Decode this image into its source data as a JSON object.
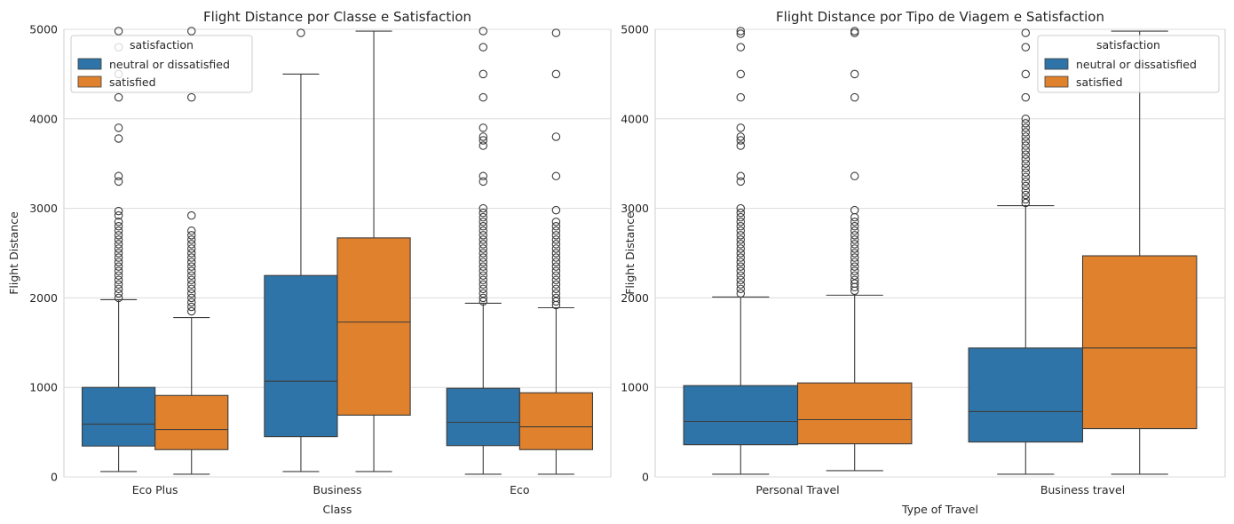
{
  "chart_data": [
    {
      "type": "box",
      "title": "Flight Distance por Classe e Satisfaction",
      "xlabel": "Class",
      "ylabel": "Flight Distance",
      "ylim": [
        0,
        5000
      ],
      "yticks": [
        "0",
        "1000",
        "2000",
        "3000",
        "4000",
        "5000"
      ],
      "grid": "horizontal",
      "legend": {
        "title": "satisfaction",
        "placement": "top-left",
        "entries": [
          "neutral or dissatisfied",
          "satisfied"
        ]
      },
      "categories": [
        "Eco Plus",
        "Business",
        "Eco"
      ],
      "series": [
        {
          "name": "neutral or dissatisfied",
          "color": "#2e74a8",
          "boxes": [
            {
              "q1": 345,
              "median": 590,
              "q3": 1000,
              "whislo": 60,
              "whishi": 1980,
              "outliers": [
                2000,
                2050,
                2100,
                2150,
                2200,
                2250,
                2300,
                2350,
                2400,
                2450,
                2500,
                2550,
                2600,
                2650,
                2700,
                2750,
                2800,
                2850,
                2920,
                2970,
                3300,
                3360,
                3780,
                3900,
                4240,
                4500,
                4800,
                4980
              ]
            },
            {
              "q1": 450,
              "median": 1070,
              "q3": 2250,
              "whislo": 60,
              "whishi": 4500,
              "outliers": [
                4960
              ]
            },
            {
              "q1": 350,
              "median": 610,
              "q3": 990,
              "whislo": 30,
              "whishi": 1940,
              "outliers": [
                1960,
                2000,
                2050,
                2100,
                2150,
                2200,
                2250,
                2300,
                2350,
                2400,
                2450,
                2500,
                2550,
                2600,
                2650,
                2700,
                2750,
                2800,
                2850,
                2900,
                2950,
                3000,
                3300,
                3360,
                3700,
                3760,
                3800,
                3900,
                4240,
                4500,
                4800,
                4980
              ]
            }
          ]
        },
        {
          "name": "satisfied",
          "color": "#e0812d",
          "boxes": [
            {
              "q1": 305,
              "median": 530,
              "q3": 910,
              "whislo": 30,
              "whishi": 1780,
              "outliers": [
                1850,
                1900,
                1950,
                2000,
                2050,
                2100,
                2150,
                2200,
                2250,
                2300,
                2350,
                2400,
                2450,
                2500,
                2550,
                2600,
                2650,
                2700,
                2750,
                2920,
                4240,
                4980
              ]
            },
            {
              "q1": 690,
              "median": 1730,
              "q3": 2670,
              "whislo": 60,
              "whishi": 4980,
              "outliers": []
            },
            {
              "q1": 305,
              "median": 560,
              "q3": 940,
              "whislo": 30,
              "whishi": 1890,
              "outliers": [
                1920,
                1960,
                2000,
                2050,
                2100,
                2150,
                2200,
                2250,
                2300,
                2350,
                2400,
                2450,
                2500,
                2550,
                2600,
                2650,
                2700,
                2750,
                2800,
                2850,
                2980,
                3360,
                3800,
                4500,
                4960
              ]
            }
          ]
        }
      ]
    },
    {
      "type": "box",
      "title": "Flight Distance por Tipo de Viagem e Satisfaction",
      "xlabel": "Type of Travel",
      "ylabel": "Flight Distance",
      "ylim": [
        0,
        5000
      ],
      "yticks": [
        "0",
        "1000",
        "2000",
        "3000",
        "4000",
        "5000"
      ],
      "grid": "horizontal",
      "legend": {
        "title": "satisfaction",
        "placement": "top-right",
        "entries": [
          "neutral or dissatisfied",
          "satisfied"
        ]
      },
      "categories": [
        "Personal Travel",
        "Business travel"
      ],
      "series": [
        {
          "name": "neutral or dissatisfied",
          "color": "#2e74a8",
          "boxes": [
            {
              "q1": 360,
              "median": 620,
              "q3": 1020,
              "whislo": 30,
              "whishi": 2010,
              "outliers": [
                2050,
                2100,
                2150,
                2200,
                2250,
                2300,
                2350,
                2400,
                2450,
                2500,
                2550,
                2600,
                2650,
                2700,
                2750,
                2800,
                2850,
                2900,
                2950,
                3000,
                3300,
                3360,
                3700,
                3760,
                3800,
                3900,
                4240,
                4500,
                4800,
                4950,
                4980
              ]
            },
            {
              "q1": 390,
              "median": 730,
              "q3": 1440,
              "whislo": 30,
              "whishi": 3030,
              "outliers": [
                3060,
                3100,
                3150,
                3200,
                3250,
                3300,
                3350,
                3400,
                3450,
                3500,
                3550,
                3600,
                3650,
                3700,
                3750,
                3800,
                3850,
                3900,
                3950,
                4000,
                4240,
                4500,
                4800,
                4960
              ]
            }
          ]
        },
        {
          "name": "satisfied",
          "color": "#e0812d",
          "boxes": [
            {
              "q1": 370,
              "median": 640,
              "q3": 1050,
              "whislo": 70,
              "whishi": 2030,
              "outliers": [
                2080,
                2120,
                2160,
                2200,
                2250,
                2300,
                2350,
                2400,
                2450,
                2500,
                2550,
                2600,
                2650,
                2700,
                2750,
                2800,
                2850,
                2900,
                2980,
                3360,
                4240,
                4500,
                4960,
                4980
              ]
            },
            {
              "q1": 540,
              "median": 1440,
              "q3": 2470,
              "whislo": 30,
              "whishi": 4980,
              "outliers": []
            }
          ]
        }
      ]
    }
  ]
}
